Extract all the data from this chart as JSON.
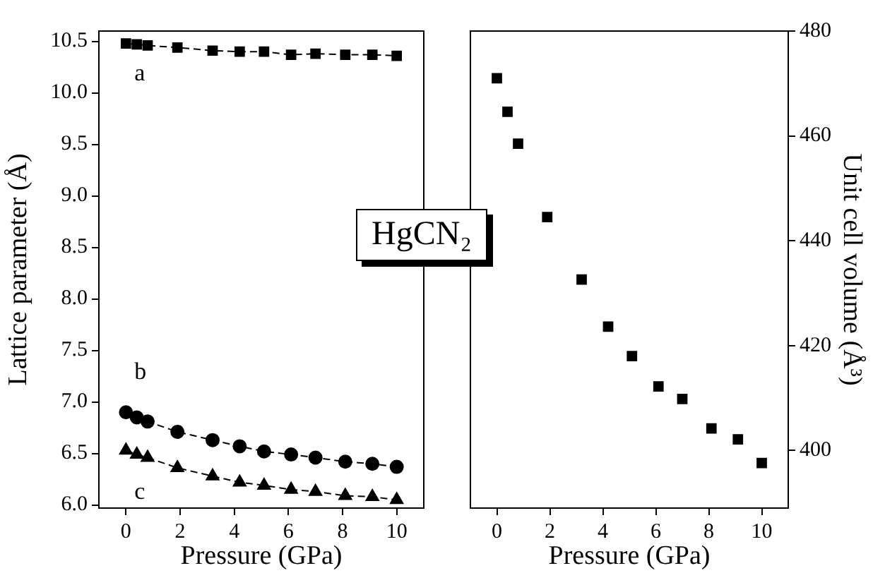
{
  "chart_data": [
    {
      "type": "line",
      "xlabel": "Pressure (GPa)",
      "ylabel": "Lattice parameter (Å)",
      "xlim": [
        -1,
        11
      ],
      "xticks": [
        0,
        2,
        4,
        6,
        8,
        10
      ],
      "ylim": [
        5.97,
        10.6
      ],
      "yticks": [
        {
          "value": 6.0,
          "label": "6.0"
        },
        {
          "value": 6.5,
          "label": "6.5"
        },
        {
          "value": 7.0,
          "label": "7.0"
        },
        {
          "value": 7.5,
          "label": "7.5"
        },
        {
          "value": 8.0,
          "label": "8.0"
        },
        {
          "value": 8.5,
          "label": "8.5"
        },
        {
          "value": 9.0,
          "label": "9.0"
        },
        {
          "value": 9.5,
          "label": "9.5"
        },
        {
          "value": 10.0,
          "label": "10.0"
        },
        {
          "value": 10.5,
          "label": "10.5"
        }
      ],
      "grid": false,
      "legend": false,
      "line_style": "dashed",
      "annotations": [
        "HgCN₂"
      ],
      "x": [
        0,
        0.4,
        0.8,
        1.9,
        3.2,
        4.2,
        5.1,
        6.1,
        7.0,
        8.1,
        9.1,
        10
      ],
      "series": [
        {
          "name": "a",
          "color": "#000000",
          "marker": "square",
          "values": [
            10.48,
            10.47,
            10.46,
            10.44,
            10.41,
            10.4,
            10.4,
            10.37,
            10.38,
            10.37,
            10.37,
            10.36
          ]
        },
        {
          "name": "b",
          "color": "#000000",
          "marker": "circle",
          "values": [
            6.9,
            6.85,
            6.81,
            6.71,
            6.63,
            6.57,
            6.52,
            6.49,
            6.46,
            6.42,
            6.4,
            6.37
          ]
        },
        {
          "name": "c",
          "color": "#000000",
          "marker": "triangle",
          "values": [
            6.53,
            6.49,
            6.46,
            6.36,
            6.28,
            6.22,
            6.19,
            6.15,
            6.13,
            6.09,
            6.08,
            6.05
          ]
        }
      ]
    },
    {
      "type": "scatter",
      "xlabel": "Pressure (GPa)",
      "y2label": "Unit cell volume (Å³)",
      "xlim": [
        -1,
        11
      ],
      "xticks": [
        0,
        2,
        4,
        6,
        8,
        10
      ],
      "y2lim": [
        389,
        480
      ],
      "y2ticks": [
        400,
        420,
        440,
        460,
        480
      ],
      "grid": false,
      "legend": false,
      "marker": "square",
      "x": [
        0,
        0.4,
        0.8,
        1.9,
        3.2,
        4.2,
        5.1,
        6.1,
        7.0,
        8.1,
        9.1,
        10
      ],
      "series": [
        {
          "color": "#000000",
          "axis": "y2",
          "values": [
            471,
            464.6,
            458.5,
            444.5,
            432.6,
            423.6,
            418,
            412.2,
            409.8,
            404.2,
            402.1,
            397.6
          ]
        }
      ]
    }
  ]
}
